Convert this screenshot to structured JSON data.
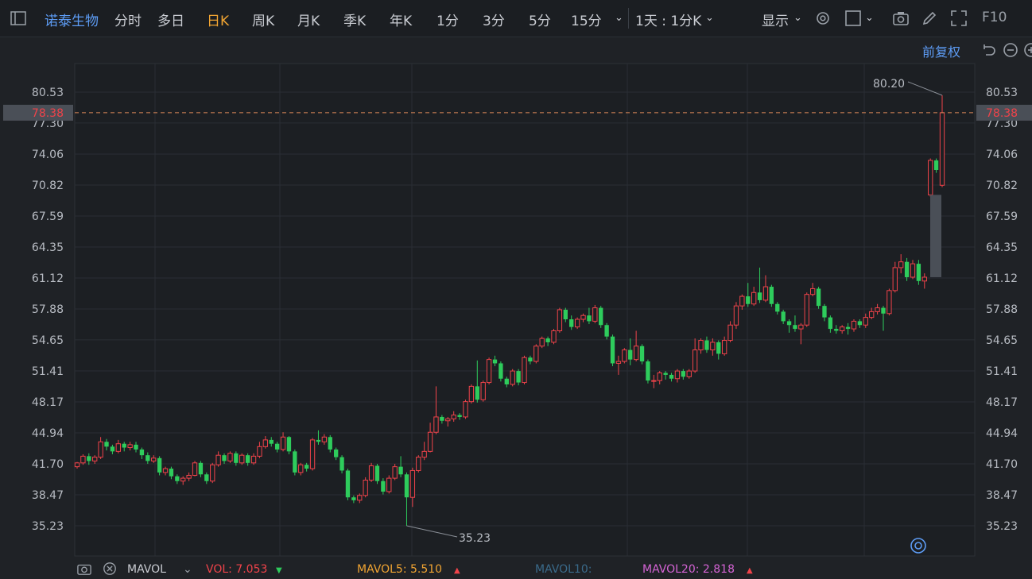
{
  "toolbar": {
    "stock_name": "诺泰生物",
    "tabs": [
      "分时",
      "多日",
      "日K",
      "周K",
      "月K",
      "季K",
      "年K",
      "1分",
      "3分",
      "5分",
      "15分"
    ],
    "active_tab": "日K",
    "interval_select": "1天 : 1分K",
    "display_label": "显示",
    "f10_label": "F10"
  },
  "adjust_label": "前复权",
  "price_ticks": [
    "80.53",
    "77.30",
    "74.06",
    "70.82",
    "67.59",
    "64.35",
    "61.12",
    "57.88",
    "54.65",
    "51.41",
    "48.17",
    "44.94",
    "41.70",
    "38.47",
    "35.23"
  ],
  "current_price": "78.38",
  "annotations": {
    "high": "80.20",
    "low": "35.23"
  },
  "indicator": {
    "name": "MAVOL",
    "vol_label": "VOL: 7.053",
    "mavol5_label": "MAVOL5: 5.510",
    "mavol10_label": "MAVOL10:",
    "mavol20_label": "MAVOL20: 2.818"
  },
  "colors": {
    "up": "#f0434a",
    "down": "#2ecc5c",
    "accent": "#f0a432",
    "link": "#5d9cf5"
  },
  "chart_data": {
    "type": "candlestick",
    "ylim": [
      35.23,
      80.53
    ],
    "candles": [
      [
        41.4,
        41.8,
        41.2,
        41.9
      ],
      [
        41.8,
        42.5,
        41.6,
        42.7
      ],
      [
        42.5,
        42.0,
        41.6,
        42.8
      ],
      [
        42.0,
        42.4,
        41.7,
        42.6
      ],
      [
        42.4,
        44.0,
        42.2,
        44.5
      ],
      [
        44.0,
        43.5,
        43.1,
        44.3
      ],
      [
        43.5,
        43.0,
        42.7,
        43.7
      ],
      [
        43.0,
        43.8,
        42.8,
        44.2
      ],
      [
        43.8,
        43.4,
        43.0,
        44.0
      ],
      [
        43.4,
        43.7,
        43.1,
        44.0
      ],
      [
        43.7,
        43.2,
        42.9,
        44.0
      ],
      [
        43.2,
        42.6,
        42.2,
        43.4
      ],
      [
        42.6,
        42.0,
        41.7,
        42.9
      ],
      [
        42.0,
        42.3,
        41.8,
        42.6
      ],
      [
        42.3,
        40.8,
        40.5,
        42.5
      ],
      [
        40.8,
        41.2,
        40.5,
        41.4
      ],
      [
        41.2,
        40.4,
        40.1,
        41.4
      ],
      [
        40.4,
        39.9,
        39.6,
        40.6
      ],
      [
        39.9,
        40.2,
        39.5,
        40.4
      ],
      [
        40.2,
        40.5,
        39.9,
        40.8
      ],
      [
        40.5,
        41.8,
        40.4,
        42.0
      ],
      [
        41.8,
        40.6,
        40.3,
        42.0
      ],
      [
        40.6,
        39.9,
        39.6,
        40.8
      ],
      [
        39.9,
        41.6,
        39.7,
        41.8
      ],
      [
        41.6,
        42.6,
        41.4,
        43.0
      ],
      [
        42.6,
        42.0,
        41.7,
        42.8
      ],
      [
        42.0,
        42.8,
        41.8,
        43.0
      ],
      [
        42.8,
        41.8,
        41.5,
        43.0
      ],
      [
        41.8,
        42.6,
        41.6,
        42.8
      ],
      [
        42.6,
        41.8,
        41.5,
        42.8
      ],
      [
        41.8,
        42.5,
        41.6,
        42.8
      ],
      [
        42.5,
        43.5,
        42.3,
        44.0
      ],
      [
        43.5,
        44.2,
        43.3,
        44.6
      ],
      [
        44.2,
        43.8,
        43.5,
        44.5
      ],
      [
        43.8,
        43.2,
        42.9,
        44.0
      ],
      [
        43.2,
        44.5,
        43.0,
        45.0
      ],
      [
        44.5,
        43.0,
        42.7,
        44.6
      ],
      [
        43.0,
        40.8,
        40.5,
        43.2
      ],
      [
        40.8,
        41.6,
        40.5,
        41.8
      ],
      [
        41.6,
        41.2,
        40.9,
        41.8
      ],
      [
        41.2,
        44.2,
        41.0,
        44.4
      ],
      [
        44.2,
        44.0,
        43.7,
        45.2
      ],
      [
        44.0,
        44.5,
        43.7,
        44.8
      ],
      [
        44.5,
        43.2,
        42.9,
        44.7
      ],
      [
        43.2,
        42.4,
        42.1,
        43.4
      ],
      [
        42.4,
        41.0,
        40.7,
        42.6
      ],
      [
        41.0,
        38.2,
        37.9,
        41.2
      ],
      [
        38.2,
        37.9,
        37.6,
        38.4
      ],
      [
        37.9,
        38.4,
        37.6,
        38.6
      ],
      [
        38.4,
        40.0,
        38.2,
        40.3
      ],
      [
        40.0,
        41.5,
        39.8,
        41.8
      ],
      [
        41.5,
        39.9,
        39.6,
        41.7
      ],
      [
        39.9,
        38.8,
        38.5,
        40.2
      ],
      [
        38.8,
        40.2,
        38.6,
        40.5
      ],
      [
        40.2,
        41.4,
        40.0,
        41.7
      ],
      [
        41.4,
        40.6,
        40.3,
        42.5
      ],
      [
        40.6,
        38.2,
        35.23,
        40.8
      ],
      [
        38.2,
        41.0,
        37.2,
        41.3
      ],
      [
        41.0,
        42.4,
        40.8,
        42.6
      ],
      [
        42.4,
        43.0,
        42.1,
        44.0
      ],
      [
        43.0,
        45.0,
        42.9,
        46.0
      ],
      [
        45.0,
        46.6,
        44.8,
        49.8
      ],
      [
        46.6,
        46.2,
        45.9,
        46.8
      ],
      [
        46.2,
        46.4,
        45.6,
        46.6
      ],
      [
        46.4,
        46.8,
        46.1,
        47.2
      ],
      [
        46.8,
        46.6,
        46.3,
        47.0
      ],
      [
        46.6,
        48.2,
        46.4,
        48.4
      ],
      [
        48.2,
        49.8,
        48.0,
        50.0
      ],
      [
        49.8,
        48.4,
        48.1,
        52.5
      ],
      [
        48.4,
        50.2,
        48.2,
        50.4
      ],
      [
        50.2,
        52.6,
        50.0,
        52.8
      ],
      [
        52.6,
        52.2,
        51.9,
        53.0
      ],
      [
        52.2,
        50.6,
        50.3,
        52.4
      ],
      [
        50.6,
        50.0,
        49.7,
        50.8
      ],
      [
        50.0,
        51.4,
        49.8,
        51.6
      ],
      [
        51.4,
        50.2,
        49.9,
        51.6
      ],
      [
        50.2,
        52.8,
        50.0,
        53.0
      ],
      [
        52.8,
        52.4,
        52.1,
        53.0
      ],
      [
        52.4,
        54.0,
        52.2,
        54.2
      ],
      [
        54.0,
        54.8,
        53.8,
        55.0
      ],
      [
        54.8,
        54.4,
        54.0,
        55.0
      ],
      [
        54.4,
        55.6,
        54.2,
        55.8
      ],
      [
        55.6,
        57.8,
        55.4,
        58.0
      ],
      [
        57.8,
        56.8,
        56.5,
        58.0
      ],
      [
        56.8,
        56.0,
        55.7,
        57.2
      ],
      [
        56.0,
        56.8,
        55.8,
        57.0
      ],
      [
        56.8,
        57.2,
        56.5,
        57.4
      ],
      [
        57.2,
        56.6,
        56.3,
        58.0
      ],
      [
        56.6,
        58.0,
        56.4,
        58.3
      ],
      [
        58.0,
        56.2,
        55.9,
        58.2
      ],
      [
        56.2,
        55.0,
        54.7,
        56.4
      ],
      [
        55.0,
        52.2,
        51.9,
        55.2
      ],
      [
        52.2,
        52.4,
        51.0,
        53.0
      ],
      [
        52.4,
        53.6,
        52.2,
        53.8
      ],
      [
        53.6,
        52.6,
        52.0,
        54.8
      ],
      [
        52.6,
        54.0,
        52.4,
        55.6
      ],
      [
        54.0,
        52.4,
        52.1,
        54.2
      ],
      [
        52.4,
        50.4,
        50.1,
        52.6
      ],
      [
        50.4,
        50.4,
        49.6,
        51.0
      ],
      [
        50.4,
        51.2,
        50.0,
        51.4
      ],
      [
        51.2,
        51.0,
        50.5,
        51.4
      ],
      [
        51.0,
        50.6,
        50.3,
        51.2
      ],
      [
        50.6,
        51.4,
        50.2,
        51.6
      ],
      [
        51.4,
        50.8,
        50.5,
        51.6
      ],
      [
        50.8,
        51.4,
        50.6,
        51.6
      ],
      [
        51.4,
        53.6,
        51.2,
        54.8
      ],
      [
        53.6,
        54.6,
        53.2,
        54.8
      ],
      [
        54.6,
        53.6,
        53.3,
        55.0
      ],
      [
        53.6,
        54.4,
        53.0,
        54.8
      ],
      [
        54.4,
        53.2,
        52.6,
        54.6
      ],
      [
        53.2,
        54.6,
        53.0,
        55.0
      ],
      [
        54.6,
        56.2,
        54.4,
        56.6
      ],
      [
        56.2,
        58.2,
        55.8,
        58.6
      ],
      [
        58.2,
        59.2,
        57.8,
        59.4
      ],
      [
        59.2,
        58.4,
        58.1,
        60.6
      ],
      [
        58.4,
        59.6,
        58.2,
        60.2
      ],
      [
        59.6,
        58.8,
        58.5,
        62.2
      ],
      [
        58.8,
        60.2,
        58.6,
        61.4
      ],
      [
        60.2,
        58.4,
        58.1,
        60.4
      ],
      [
        58.4,
        57.6,
        57.3,
        58.6
      ],
      [
        57.6,
        56.6,
        56.3,
        57.8
      ],
      [
        56.6,
        56.2,
        55.4,
        56.8
      ],
      [
        56.2,
        55.8,
        55.5,
        57.2
      ],
      [
        55.8,
        56.2,
        54.2,
        56.4
      ],
      [
        56.2,
        59.4,
        56.0,
        59.6
      ],
      [
        59.4,
        60.0,
        59.2,
        60.6
      ],
      [
        60.0,
        58.2,
        57.9,
        60.2
      ],
      [
        58.2,
        57.0,
        56.6,
        58.4
      ],
      [
        57.0,
        55.8,
        55.4,
        57.2
      ],
      [
        55.8,
        55.6,
        55.3,
        56.2
      ],
      [
        55.6,
        56.0,
        55.3,
        56.2
      ],
      [
        56.0,
        55.8,
        55.2,
        56.4
      ],
      [
        55.8,
        56.6,
        55.5,
        56.8
      ],
      [
        56.6,
        56.2,
        55.9,
        56.8
      ],
      [
        56.2,
        57.0,
        55.9,
        57.4
      ],
      [
        57.0,
        57.6,
        56.8,
        58.0
      ],
      [
        57.6,
        58.0,
        57.3,
        58.4
      ],
      [
        58.0,
        57.4,
        55.6,
        58.2
      ],
      [
        57.4,
        59.8,
        57.2,
        60.0
      ],
      [
        59.8,
        62.2,
        59.6,
        62.8
      ],
      [
        62.2,
        62.8,
        61.6,
        63.6
      ],
      [
        62.8,
        61.2,
        60.8,
        63.2
      ],
      [
        61.2,
        62.6,
        61.0,
        63.0
      ],
      [
        62.6,
        60.8,
        60.4,
        63.0
      ],
      [
        60.8,
        61.2,
        60.0,
        61.6
      ],
      [
        69.8,
        73.4,
        69.6,
        73.6
      ],
      [
        73.4,
        72.4,
        72.1,
        73.6
      ],
      [
        70.8,
        78.38,
        70.6,
        80.2
      ]
    ]
  }
}
